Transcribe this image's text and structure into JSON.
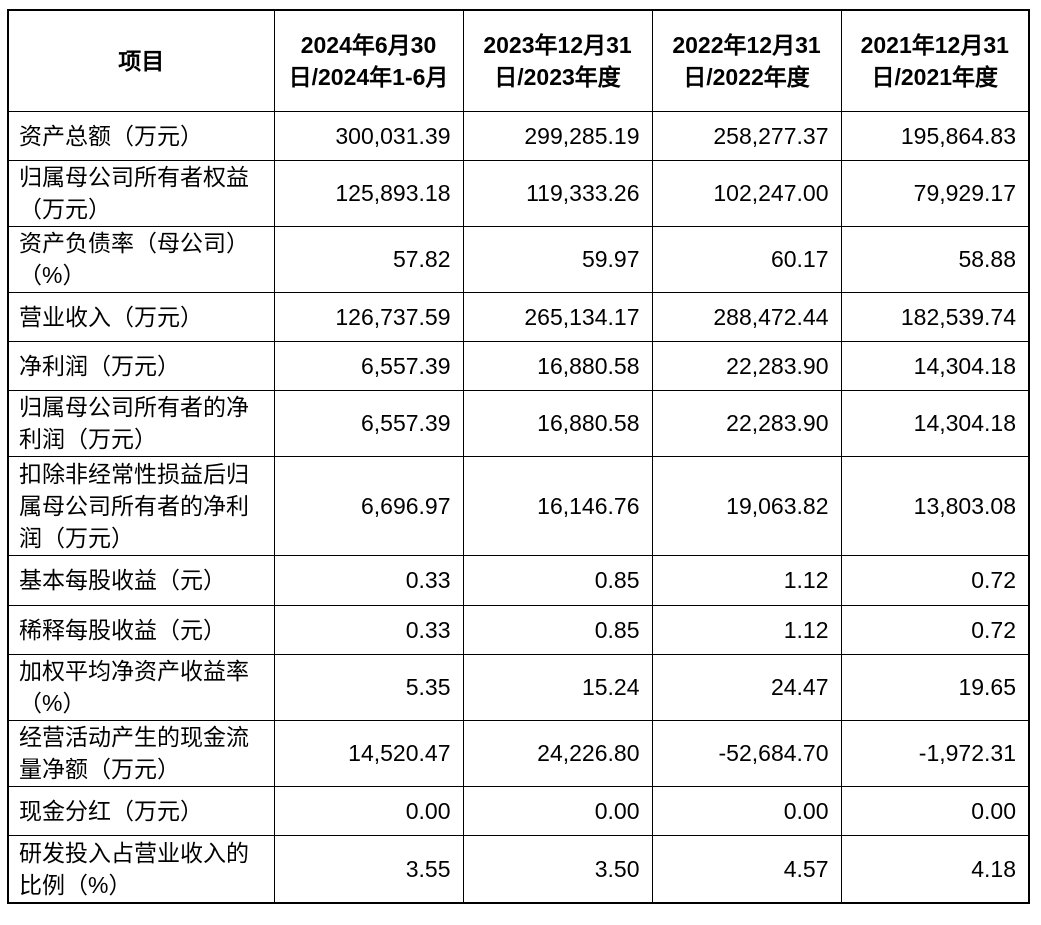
{
  "header": {
    "item": "项目",
    "p1": "2024年6月30日/2024年1-6月",
    "p2": "2023年12月31日/2023年度",
    "p3": "2022年12月31日/2022年度",
    "p4": "2021年12月31日/2021年度"
  },
  "rows": [
    {
      "label": "资产总额（万元）",
      "v1": "300,031.39",
      "v2": "299,285.19",
      "v3": "258,277.37",
      "v4": "195,864.83"
    },
    {
      "label": "归属母公司所有者权益（万元）",
      "v1": "125,893.18",
      "v2": "119,333.26",
      "v3": "102,247.00",
      "v4": "79,929.17"
    },
    {
      "label": "资产负债率（母公司）（%）",
      "v1": "57.82",
      "v2": "59.97",
      "v3": "60.17",
      "v4": "58.88"
    },
    {
      "label": "营业收入（万元）",
      "v1": "126,737.59",
      "v2": "265,134.17",
      "v3": "288,472.44",
      "v4": "182,539.74"
    },
    {
      "label": "净利润（万元）",
      "v1": "6,557.39",
      "v2": "16,880.58",
      "v3": "22,283.90",
      "v4": "14,304.18"
    },
    {
      "label": "归属母公司所有者的净利润（万元）",
      "v1": "6,557.39",
      "v2": "16,880.58",
      "v3": "22,283.90",
      "v4": "14,304.18"
    },
    {
      "label": "扣除非经常性损益后归属母公司所有者的净利润（万元）",
      "v1": "6,696.97",
      "v2": "16,146.76",
      "v3": "19,063.82",
      "v4": "13,803.08"
    },
    {
      "label": "基本每股收益（元）",
      "v1": "0.33",
      "v2": "0.85",
      "v3": "1.12",
      "v4": "0.72"
    },
    {
      "label": "稀释每股收益（元）",
      "v1": "0.33",
      "v2": "0.85",
      "v3": "1.12",
      "v4": "0.72"
    },
    {
      "label": "加权平均净资产收益率（%）",
      "v1": "5.35",
      "v2": "15.24",
      "v3": "24.47",
      "v4": "19.65"
    },
    {
      "label": "经营活动产生的现金流量净额（万元）",
      "v1": "14,520.47",
      "v2": "24,226.80",
      "v3": "-52,684.70",
      "v4": "-1,972.31"
    },
    {
      "label": "现金分红（万元）",
      "v1": "0.00",
      "v2": "0.00",
      "v3": "0.00",
      "v4": "0.00"
    },
    {
      "label": "研发投入占营业收入的比例（%）",
      "v1": "3.55",
      "v2": "3.50",
      "v3": "4.57",
      "v4": "4.18"
    }
  ]
}
